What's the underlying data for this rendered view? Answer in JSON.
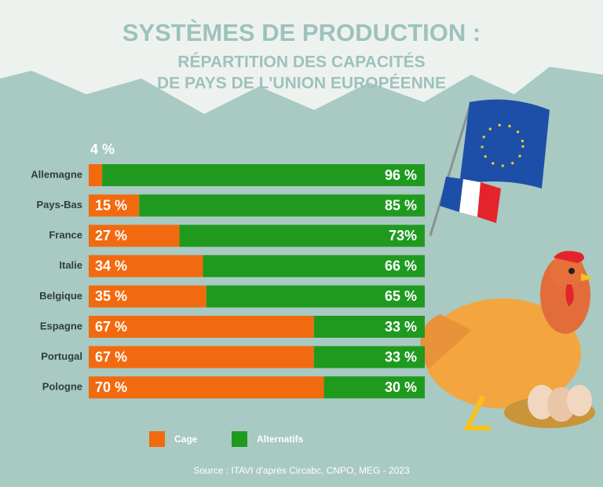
{
  "chart_data": {
    "type": "stacked-bar-horizontal",
    "title": "SYSTÈMES DE PRODUCTION :",
    "subtitle": [
      "RÉPARTITION DES CAPACITÉS",
      "DE PAYS DE L'UNION EUROPÉENNE"
    ],
    "categories": [
      "Allemagne",
      "Pays-Bas",
      "France",
      "Italie",
      "Belgique",
      "Espagne",
      "Portugal",
      "Pologne"
    ],
    "series": [
      {
        "name": "Cage",
        "color": "#f26a0f",
        "values": [
          4,
          15,
          27,
          34,
          35,
          67,
          67,
          70
        ],
        "value_labels": [
          "4 %",
          "15 %",
          "27 %",
          "34 %",
          "35 %",
          "67 %",
          "67 %",
          "70 %"
        ]
      },
      {
        "name": "Alternatifs",
        "color": "#1f9a1f",
        "values": [
          96,
          85,
          73,
          66,
          65,
          33,
          33,
          30
        ],
        "value_labels": [
          "96 %",
          "85 %",
          "73%",
          "66 %",
          "65 %",
          "33 %",
          "33 %",
          "30 %"
        ]
      }
    ],
    "xlim": [
      0,
      100
    ],
    "source": "Source : ITAVI d'après Circabc, CNPO, MEG - 2023"
  }
}
